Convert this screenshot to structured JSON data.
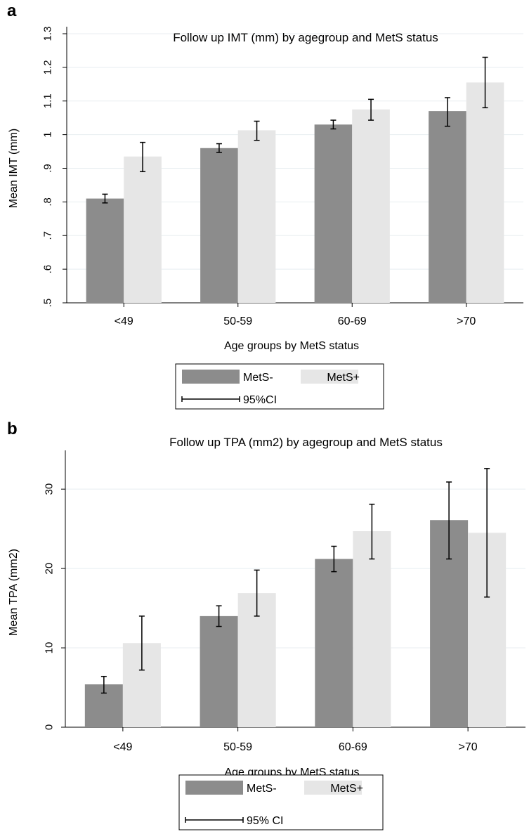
{
  "chart_data": [
    {
      "panel": "a",
      "type": "bar",
      "title": "Follow up IMT (mm) by agegroup and MetS status",
      "xlabel": "Age groups by MetS status",
      "ylabel": "Mean IMT (mm)",
      "ylim": [
        0.5,
        1.3
      ],
      "yticks": [
        ".5",
        ".6",
        ".7",
        ".8",
        ".9",
        "1",
        "1.1",
        "1.2",
        "1.3"
      ],
      "ytick_values": [
        0.5,
        0.6,
        0.7,
        0.8,
        0.9,
        1.0,
        1.1,
        1.2,
        1.3
      ],
      "grid": true,
      "categories": [
        "<49",
        "50-59",
        "60-69",
        ">70"
      ],
      "series": [
        {
          "name": "MetS-",
          "color": "#8c8c8c",
          "values": [
            0.81,
            0.96,
            1.03,
            1.07
          ],
          "ci_low": [
            0.797,
            0.947,
            1.017,
            1.025
          ],
          "ci_high": [
            0.823,
            0.973,
            1.043,
            1.11
          ]
        },
        {
          "name": "MetS+",
          "color": "#e6e6e6",
          "values": [
            0.935,
            1.013,
            1.075,
            1.155
          ],
          "ci_low": [
            0.89,
            0.983,
            1.043,
            1.08
          ],
          "ci_high": [
            0.977,
            1.04,
            1.105,
            1.23
          ]
        }
      ],
      "legend": {
        "placement": "bottom",
        "ci_label": "95%CI"
      }
    },
    {
      "panel": "b",
      "type": "bar",
      "title": "Follow up TPA (mm2) by agegroup and MetS status",
      "xlabel": "Age groups by MetS status",
      "ylabel": "Mean TPA (mm2)",
      "ylim": [
        0,
        34
      ],
      "yticks": [
        "0",
        "10",
        "20",
        "30"
      ],
      "ytick_values": [
        0,
        10,
        20,
        30
      ],
      "grid": true,
      "categories": [
        "<49",
        "50-59",
        "60-69",
        ">70"
      ],
      "series": [
        {
          "name": "MetS-",
          "color": "#8c8c8c",
          "values": [
            5.4,
            14.0,
            21.2,
            26.1
          ],
          "ci_low": [
            4.3,
            12.7,
            19.6,
            21.2
          ],
          "ci_high": [
            6.4,
            15.3,
            22.8,
            30.9
          ]
        },
        {
          "name": "MetS+",
          "color": "#e6e6e6",
          "values": [
            10.6,
            16.9,
            24.7,
            24.5
          ],
          "ci_low": [
            7.2,
            14.0,
            21.2,
            16.4
          ],
          "ci_high": [
            14.0,
            19.8,
            28.1,
            32.6
          ]
        }
      ],
      "legend": {
        "placement": "bottom",
        "ci_label": "95% CI"
      }
    }
  ]
}
